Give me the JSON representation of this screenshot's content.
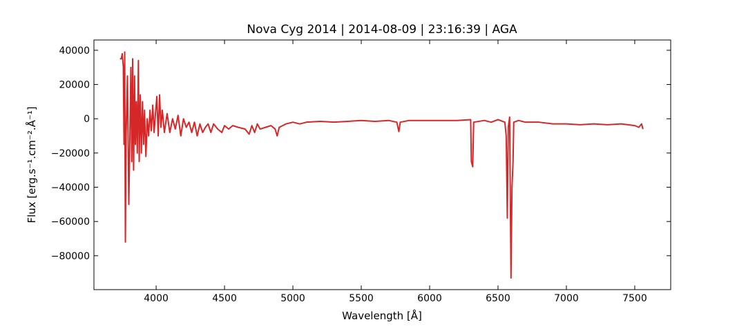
{
  "chart_data": {
    "type": "line",
    "title": "Nova Cyg 2014 | 2014-08-09 | 23:16:39 | AGA",
    "x_label": "Wavelength [Å]",
    "y_label": "Flux [erg.s⁻¹.cm⁻².Å⁻¹]",
    "xlim": [
      3545,
      7763
    ],
    "ylim": [
      -99800,
      46000
    ],
    "xticks": [
      4000,
      4500,
      5000,
      5500,
      6000,
      6500,
      7000,
      7500
    ],
    "yticks": [
      {
        "value": -80000,
        "label": "−80000"
      },
      {
        "value": -60000,
        "label": "−60000"
      },
      {
        "value": -40000,
        "label": "−40000"
      },
      {
        "value": -20000,
        "label": "−20000"
      },
      0,
      20000,
      40000
    ],
    "grid": false,
    "series": [
      {
        "color": "#d62728",
        "x": [
          3735,
          3745,
          3752,
          3760,
          3765,
          3770,
          3775,
          3780,
          3790,
          3800,
          3808,
          3815,
          3822,
          3828,
          3835,
          3842,
          3848,
          3855,
          3862,
          3870,
          3876,
          3884,
          3892,
          3900,
          3908,
          3915,
          3925,
          3935,
          3945,
          3955,
          3965,
          3975,
          3985,
          3995,
          4005,
          4015,
          4025,
          4035,
          4045,
          4060,
          4080,
          4100,
          4120,
          4140,
          4160,
          4180,
          4200,
          4220,
          4240,
          4260,
          4280,
          4300,
          4320,
          4340,
          4360,
          4380,
          4400,
          4420,
          4450,
          4480,
          4500,
          4530,
          4560,
          4600,
          4650,
          4680,
          4700,
          4720,
          4740,
          4760,
          4800,
          4840,
          4870,
          4885,
          4900,
          4950,
          5000,
          5050,
          5100,
          5200,
          5300,
          5400,
          5500,
          5600,
          5700,
          5760,
          5775,
          5785,
          5850,
          6000,
          6100,
          6200,
          6300,
          6305,
          6315,
          6322,
          6400,
          6450,
          6500,
          6550,
          6560,
          6568,
          6575,
          6585,
          6595,
          6602,
          6610,
          6615,
          6650,
          6700,
          6800,
          6900,
          7000,
          7100,
          7200,
          7300,
          7400,
          7500,
          7530,
          7550,
          7560
        ],
        "values": [
          35000,
          35000,
          38000,
          30000,
          -15000,
          39000,
          -72000,
          -10000,
          25000,
          -50000,
          -10000,
          30000,
          -25000,
          35000,
          -30000,
          25000,
          -15000,
          10000,
          -20000,
          34000,
          -25000,
          14000,
          -20000,
          10000,
          -15000,
          5000,
          -22000,
          0,
          -10000,
          5000,
          -7000,
          8000,
          -8000,
          3000,
          13000,
          -10000,
          14000,
          -5000,
          5000,
          -8000,
          3000,
          -8000,
          0,
          -6000,
          2000,
          -10000,
          0,
          -5000,
          -2000,
          -8000,
          -2000,
          -10000,
          -3000,
          -8000,
          -5000,
          -3000,
          -8000,
          -3000,
          -6000,
          -8000,
          -4000,
          -6000,
          -4000,
          -5000,
          -6000,
          -9000,
          -4000,
          -8000,
          -3000,
          -6000,
          -5000,
          -4000,
          -6000,
          -10000,
          -5000,
          -3000,
          -2000,
          -3000,
          -2000,
          -1500,
          -2000,
          -1500,
          -1000,
          -1500,
          -1000,
          -2000,
          -7500,
          -2000,
          -1000,
          -1000,
          -1000,
          -1000,
          -500,
          -25000,
          -28000,
          -2000,
          -1000,
          -2000,
          -500,
          -2000,
          -10000,
          -58000,
          -5000,
          1000,
          -93000,
          -40000,
          -25000,
          -2000,
          -1000,
          -2000,
          -2000,
          -3000,
          -3000,
          -3500,
          -3000,
          -3500,
          -3000,
          -4000,
          -5000,
          -3000,
          -6000
        ]
      }
    ]
  }
}
